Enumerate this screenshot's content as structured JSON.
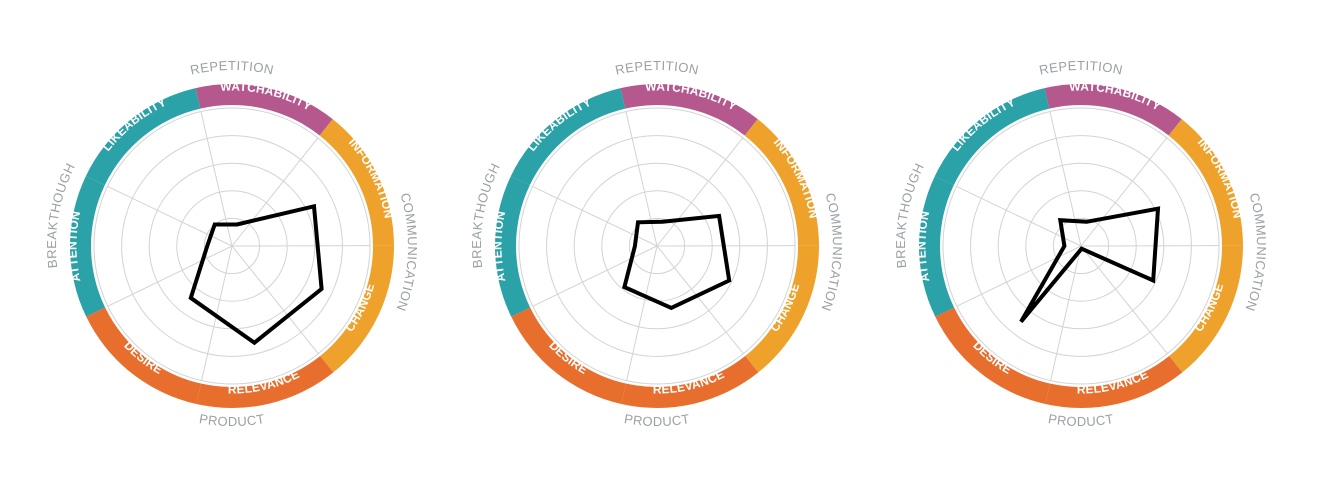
{
  "colors": {
    "teal": "#2aa2a8",
    "magenta": "#b4588e",
    "amber": "#eea22c",
    "orange": "#e86e2e",
    "grid": "#d3d3d3",
    "group_label": "#9aa0a6",
    "data_line": "#000000"
  },
  "chart_data": [
    {
      "type": "radar",
      "axes": [
        "WATCHABILITY",
        "INFORMATION",
        "CHANGE",
        "RELEVANCE",
        "DESIRE",
        "ATTENTION",
        "LIKEABILITY"
      ],
      "rings": 5,
      "scale_max": 5,
      "segments": [
        {
          "label": "WATCHABILITY",
          "color": "magenta"
        },
        {
          "label": "INFORMATION",
          "color": "amber"
        },
        {
          "label": "CHANGE",
          "color": "amber"
        },
        {
          "label": "RELEVANCE",
          "color": "orange"
        },
        {
          "label": "DESIRE",
          "color": "orange"
        },
        {
          "label": "ATTENTION",
          "color": "teal"
        },
        {
          "label": "LIKEABILITY",
          "color": "teal"
        }
      ],
      "groups": [
        "REPETITION",
        "COMMUNICATION",
        "PRODUCT",
        "BREAKTHOUGH"
      ],
      "values": [
        0.8,
        3.3,
        3.6,
        3.6,
        2.4,
        0.9,
        1.0
      ]
    },
    {
      "type": "radar",
      "axes": [
        "WATCHABILITY",
        "INFORMATION",
        "CHANGE",
        "RELEVANCE",
        "DESIRE",
        "ATTENTION",
        "LIKEABILITY"
      ],
      "rings": 5,
      "scale_max": 5,
      "segments": [
        {
          "label": "WATCHABILITY",
          "color": "magenta"
        },
        {
          "label": "INFORMATION",
          "color": "amber"
        },
        {
          "label": "CHANGE",
          "color": "amber"
        },
        {
          "label": "RELEVANCE",
          "color": "orange"
        },
        {
          "label": "DESIRE",
          "color": "orange"
        },
        {
          "label": "ATTENTION",
          "color": "teal"
        },
        {
          "label": "LIKEABILITY",
          "color": "teal"
        }
      ],
      "groups": [
        "REPETITION",
        "COMMUNICATION",
        "PRODUCT",
        "BREAKTHOUGH"
      ],
      "values": [
        0.9,
        2.5,
        2.9,
        2.3,
        1.9,
        0.8,
        1.1
      ]
    },
    {
      "type": "radar",
      "axes": [
        "WATCHABILITY",
        "INFORMATION",
        "CHANGE",
        "RELEVANCE",
        "DESIRE",
        "ATTENTION",
        "LIKEABILITY"
      ],
      "rings": 5,
      "scale_max": 5,
      "segments": [
        {
          "label": "WATCHABILITY",
          "color": "magenta"
        },
        {
          "label": "INFORMATION",
          "color": "amber"
        },
        {
          "label": "CHANGE",
          "color": "amber"
        },
        {
          "label": "RELEVANCE",
          "color": "orange"
        },
        {
          "label": "DESIRE",
          "color": "orange"
        },
        {
          "label": "ATTENTION",
          "color": "teal"
        },
        {
          "label": "LIKEABILITY",
          "color": "teal"
        }
      ],
      "groups": [
        "REPETITION",
        "COMMUNICATION",
        "PRODUCT",
        "BREAKTHOUGH"
      ],
      "values": [
        0.9,
        3.1,
        2.9,
        0.1,
        3.5,
        0.6,
        1.2
      ]
    }
  ]
}
